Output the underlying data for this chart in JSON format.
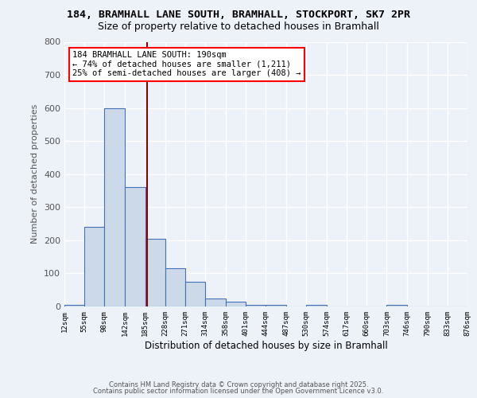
{
  "title_line1": "184, BRAMHALL LANE SOUTH, BRAMHALL, STOCKPORT, SK7 2PR",
  "title_line2": "Size of property relative to detached houses in Bramhall",
  "xlabel": "Distribution of detached houses by size in Bramhall",
  "ylabel": "Number of detached properties",
  "bin_edges": [
    12,
    55,
    98,
    142,
    185,
    228,
    271,
    314,
    358,
    401,
    444,
    487,
    530,
    574,
    617,
    660,
    703,
    746,
    790,
    833,
    876
  ],
  "counts": [
    5,
    240,
    600,
    360,
    205,
    115,
    75,
    25,
    15,
    5,
    5,
    0,
    5,
    0,
    0,
    0,
    5,
    0,
    0,
    0
  ],
  "bar_color": "#ccd9e8",
  "bar_edge_color": "#4472b8",
  "vline_x": 190,
  "vline_color": "#8b0000",
  "annotation_text": "184 BRAMHALL LANE SOUTH: 190sqm\n← 74% of detached houses are smaller (1,211)\n25% of semi-detached houses are larger (408) →",
  "annotation_box_color": "white",
  "annotation_box_edge": "red",
  "background_color": "#edf1f8",
  "grid_color": "#ffffff",
  "ylim": [
    0,
    800
  ],
  "yticks": [
    0,
    100,
    200,
    300,
    400,
    500,
    600,
    700,
    800
  ],
  "footer_line1": "Contains HM Land Registry data © Crown copyright and database right 2025.",
  "footer_line2": "Contains public sector information licensed under the Open Government Licence v3.0."
}
